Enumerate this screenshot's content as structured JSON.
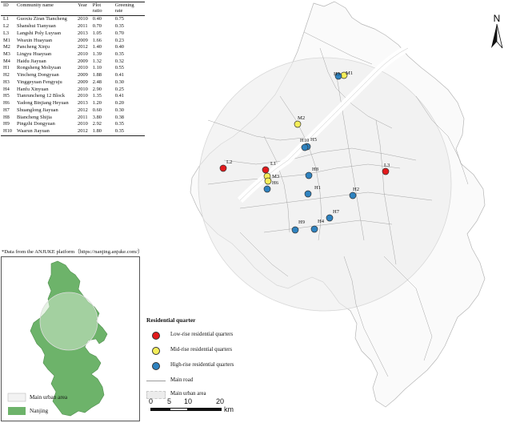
{
  "table": {
    "headers": [
      "ID",
      "Community name",
      "Year",
      "Plot ratio",
      "Greening rate"
    ],
    "rows": [
      [
        "L1",
        "Guoxiu Ziran Tiancheng",
        "2010",
        "0.40",
        "0.75"
      ],
      [
        "L2",
        "Shanshui Tianyuan",
        "2011",
        "0.70",
        "0.35"
      ],
      [
        "L3",
        "Langshi Poly Luyuan",
        "2013",
        "1.05",
        "0.70"
      ],
      [
        "M1",
        "Weaxin Huayuan",
        "2009",
        "1.66",
        "0.23"
      ],
      [
        "M2",
        "Pancheng Xinju",
        "2012",
        "1.40",
        "0.40"
      ],
      [
        "M3",
        "Lingyu Huayuan",
        "2010",
        "1.39",
        "0.35"
      ],
      [
        "M4",
        "Haidu Jiayuan",
        "2009",
        "1.32",
        "0.32"
      ],
      [
        "H1",
        "Rongsheng Moliyuan",
        "2010",
        "1.10",
        "0.55"
      ],
      [
        "H2",
        "Yincheng Dongyuan",
        "2009",
        "1.88",
        "0.41"
      ],
      [
        "H3",
        "Yinggeyuan Fengyuju",
        "2009",
        "2.48",
        "0.30"
      ],
      [
        "H4",
        "Hanfu Xinyuan",
        "2010",
        "2.90",
        "0.25"
      ],
      [
        "H5",
        "Tianruncheng 12 Block",
        "2010",
        "1.35",
        "0.41"
      ],
      [
        "H6",
        "Yadong Binjiang Heyuan",
        "2013",
        "1.20",
        "0.20"
      ],
      [
        "H7",
        "Shuanglong Jiayuan",
        "2012",
        "0.60",
        "0.30"
      ],
      [
        "H8",
        "Biancheng Shijia",
        "2011",
        "3.80",
        "0.38"
      ],
      [
        "H9",
        "Pingzhi Dongyuan",
        "2010",
        "2.92",
        "0.35"
      ],
      [
        "H10",
        "Waarun Jiayuan",
        "2012",
        "1.80",
        "0.35"
      ]
    ]
  },
  "note": "*Data from the ANJUKE platform（https://nanjing.anjuke.com/）",
  "inset_legend": {
    "main_urban_area": "Main urban area",
    "nanjing": "Nanjing"
  },
  "legend": {
    "title": "Residential quarter",
    "low": "Low-rise residential quarters",
    "mid": "Mid-rise residential quarters",
    "high": "High-rise residential quarters",
    "road": "Main road",
    "urban": "Main urban area"
  },
  "colors": {
    "low": "#e31a1c",
    "mid": "#f5ee5a",
    "high": "#2f83c0",
    "nanjing": "#6db36a",
    "urban_fill": "#e6e6e6"
  },
  "north": "N",
  "scale": {
    "ticks": [
      "0",
      "5",
      "10",
      "20"
    ],
    "unit": "km"
  },
  "points": [
    {
      "id": "L1",
      "label": "L1",
      "type": "low"
    },
    {
      "id": "L2",
      "label": "L2",
      "type": "low"
    },
    {
      "id": "L3",
      "label": "L3",
      "type": "low"
    },
    {
      "id": "M1",
      "label": "M1",
      "type": "mid"
    },
    {
      "id": "M2",
      "label": "M2",
      "type": "mid"
    },
    {
      "id": "M3",
      "label": "M3",
      "type": "mid"
    },
    {
      "id": "M4",
      "label": "M4",
      "type": "mid"
    },
    {
      "id": "H1",
      "label": "H1",
      "type": "high"
    },
    {
      "id": "H2",
      "label": "H2",
      "type": "high"
    },
    {
      "id": "H3",
      "label": "H3",
      "type": "high"
    },
    {
      "id": "H4",
      "label": "H4",
      "type": "high"
    },
    {
      "id": "H5",
      "label": "H5",
      "type": "high"
    },
    {
      "id": "H6",
      "label": "H6",
      "type": "high"
    },
    {
      "id": "H7",
      "label": "H7",
      "type": "high"
    },
    {
      "id": "H8",
      "label": "H8",
      "type": "high"
    },
    {
      "id": "H9",
      "label": "H9",
      "type": "high"
    },
    {
      "id": "H10",
      "label": "H10",
      "type": "high"
    }
  ]
}
